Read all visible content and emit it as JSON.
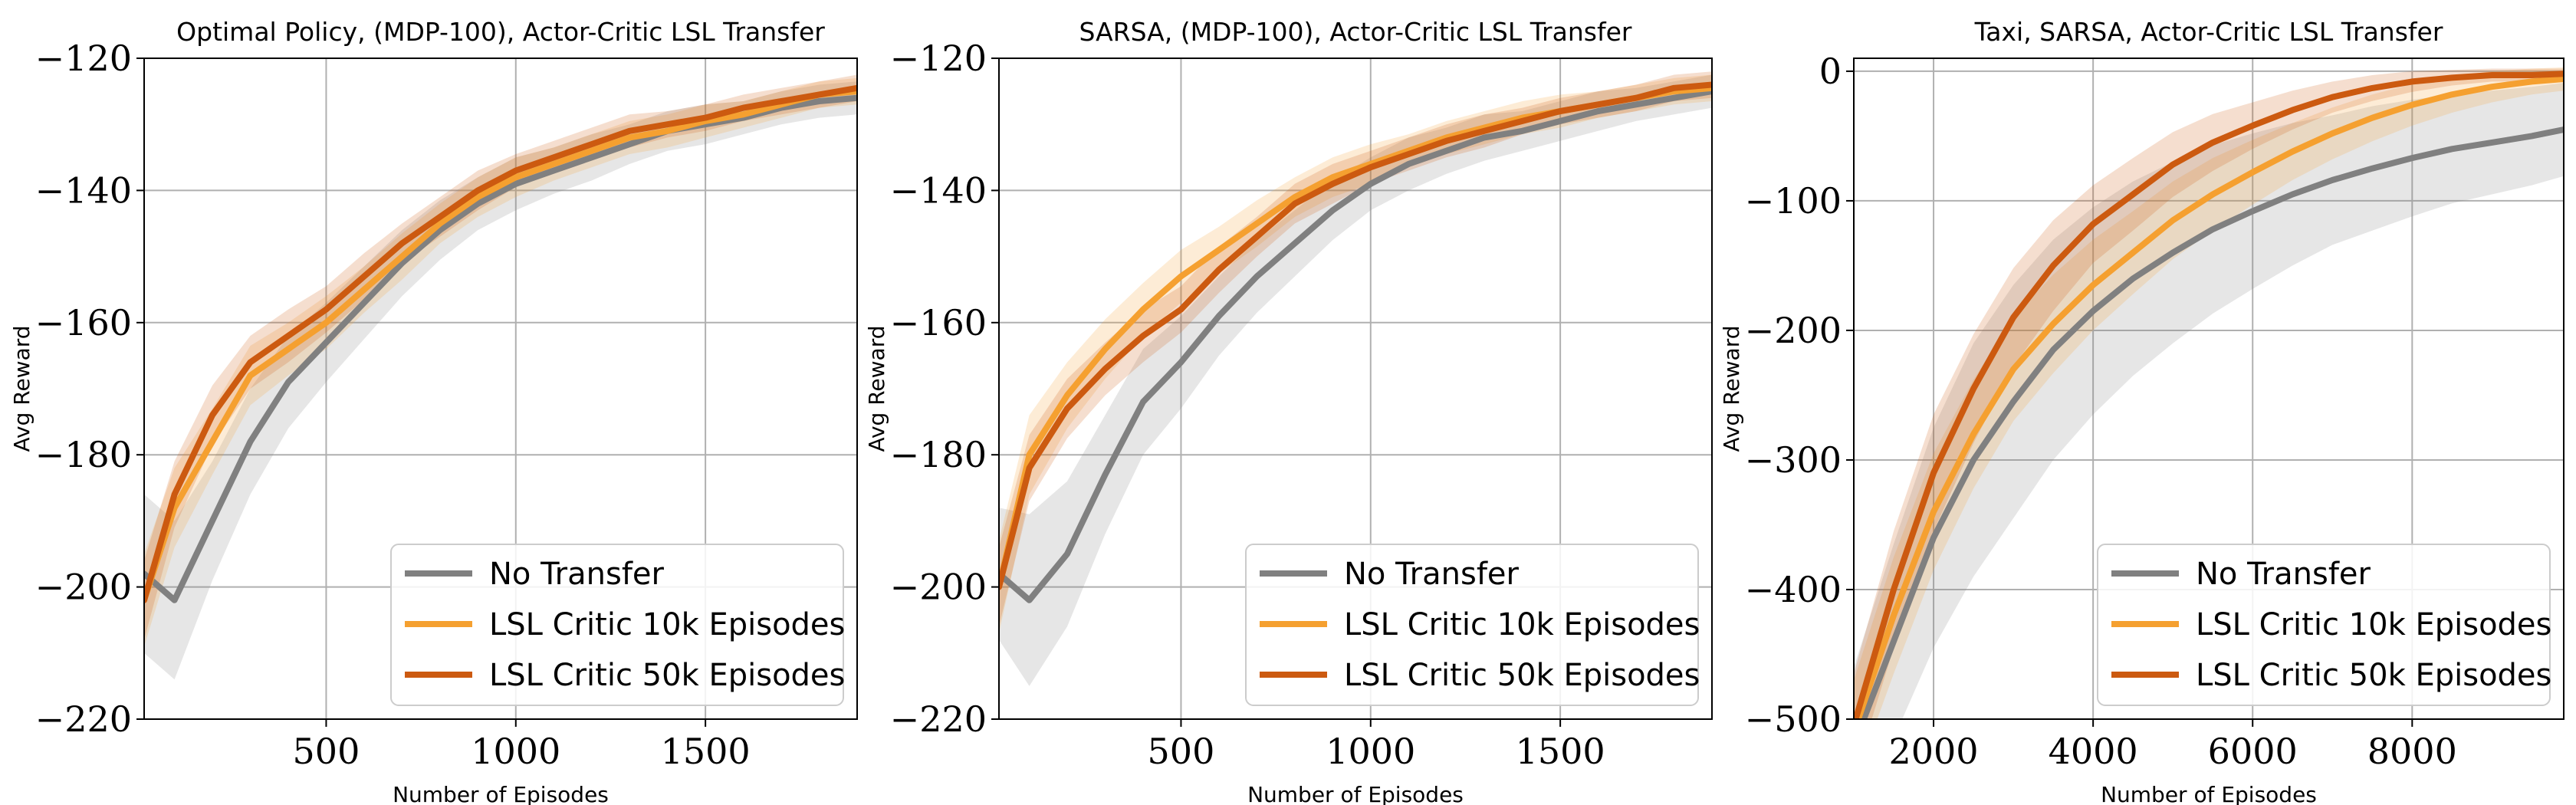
{
  "chart_data": [
    {
      "type": "line",
      "title": "Optimal Policy, (MDP-100), Actor-Critic LSL Transfer",
      "xlabel": "Number of Episodes",
      "ylabel": "Avg Reward",
      "xlim": [
        20,
        1900
      ],
      "ylim": [
        -220,
        -120
      ],
      "xticks": [
        500,
        1000,
        1500
      ],
      "yticks": [
        -220,
        -200,
        -180,
        -160,
        -140,
        -120
      ],
      "grid": true,
      "legend_position": "lower-right",
      "series": [
        {
          "name": "No Transfer",
          "color": "#808080",
          "x": [
            20,
            100,
            200,
            300,
            400,
            500,
            600,
            700,
            800,
            900,
            1000,
            1100,
            1200,
            1300,
            1400,
            1500,
            1600,
            1700,
            1800,
            1900
          ],
          "values": [
            -198,
            -202,
            -190,
            -178,
            -169,
            -163,
            -157,
            -151,
            -146,
            -142,
            -139,
            -137,
            -135,
            -133,
            -131,
            -130,
            -129,
            -127.5,
            -126.5,
            -126
          ],
          "band": [
            12,
            12,
            9,
            8,
            7,
            6,
            5.5,
            5,
            4.5,
            4,
            4,
            3.5,
            3.5,
            3,
            3,
            3,
            2.5,
            2.5,
            2.5,
            2.5
          ]
        },
        {
          "name": "LSL Critic 10k Episodes",
          "color": "#f5a030",
          "x": [
            20,
            100,
            200,
            300,
            400,
            500,
            600,
            700,
            800,
            900,
            1000,
            1100,
            1200,
            1300,
            1400,
            1500,
            1600,
            1700,
            1800,
            1900
          ],
          "values": [
            -202,
            -188,
            -178,
            -168,
            -164,
            -160,
            -155,
            -150,
            -145,
            -141,
            -138,
            -136,
            -134,
            -132,
            -131,
            -129.5,
            -128.5,
            -127,
            -125.5,
            -125
          ],
          "band": [
            7,
            6,
            5,
            4.5,
            4,
            4,
            3.5,
            3.5,
            3,
            3,
            3,
            2.5,
            2.5,
            2.5,
            2.5,
            2.5,
            2,
            2,
            2,
            2
          ]
        },
        {
          "name": "LSL Critic 50k Episodes",
          "color": "#cc5a10",
          "x": [
            20,
            100,
            200,
            300,
            400,
            500,
            600,
            700,
            800,
            900,
            1000,
            1100,
            1200,
            1300,
            1400,
            1500,
            1600,
            1700,
            1800,
            1900
          ],
          "values": [
            -202,
            -186,
            -174,
            -166,
            -162,
            -158,
            -153,
            -148,
            -144,
            -140,
            -137,
            -135,
            -133,
            -131,
            -130,
            -129,
            -127.5,
            -126.5,
            -125.5,
            -124.5
          ],
          "band": [
            6,
            5,
            4.5,
            4,
            4,
            3.5,
            3.5,
            3,
            3,
            3,
            2.5,
            2.5,
            2.5,
            2.5,
            2,
            2,
            2,
            2,
            2,
            2
          ]
        }
      ]
    },
    {
      "type": "line",
      "title": "SARSA, (MDP-100), Actor-Critic LSL Transfer",
      "xlabel": "Number of Episodes",
      "ylabel": "Avg Reward",
      "xlim": [
        20,
        1900
      ],
      "ylim": [
        -220,
        -120
      ],
      "xticks": [
        500,
        1000,
        1500
      ],
      "yticks": [
        -220,
        -200,
        -180,
        -160,
        -140,
        -120
      ],
      "grid": true,
      "legend_position": "lower-right",
      "series": [
        {
          "name": "No Transfer",
          "color": "#808080",
          "x": [
            20,
            100,
            200,
            300,
            400,
            500,
            600,
            700,
            800,
            900,
            1000,
            1100,
            1200,
            1300,
            1400,
            1500,
            1600,
            1700,
            1800,
            1900
          ],
          "values": [
            -198,
            -202,
            -195,
            -183,
            -172,
            -166,
            -159,
            -153,
            -148,
            -143,
            -139,
            -136,
            -134,
            -132,
            -131,
            -129.5,
            -128,
            -127,
            -126,
            -125
          ],
          "band": [
            10,
            13,
            11,
            9,
            8,
            7,
            6,
            5.5,
            5,
            4.5,
            4,
            4,
            3.5,
            3.5,
            3,
            3,
            3,
            2.5,
            2.5,
            2.5
          ]
        },
        {
          "name": "LSL Critic 10k Episodes",
          "color": "#f5a030",
          "x": [
            20,
            100,
            200,
            300,
            400,
            500,
            600,
            700,
            800,
            900,
            1000,
            1100,
            1200,
            1300,
            1400,
            1500,
            1600,
            1700,
            1800,
            1900
          ],
          "values": [
            -200,
            -180,
            -171,
            -164,
            -158,
            -153,
            -149,
            -145,
            -141,
            -138,
            -136,
            -134,
            -132,
            -130.5,
            -129,
            -128,
            -127,
            -126,
            -125,
            -124.5
          ],
          "band": [
            7,
            6,
            5,
            4.5,
            4,
            4,
            3.5,
            3.5,
            3,
            3,
            3,
            2.5,
            2.5,
            2.5,
            2.5,
            2.5,
            2,
            2,
            2,
            2
          ]
        },
        {
          "name": "LSL Critic 50k Episodes",
          "color": "#cc5a10",
          "x": [
            20,
            100,
            200,
            300,
            400,
            500,
            600,
            700,
            800,
            900,
            1000,
            1100,
            1200,
            1300,
            1400,
            1500,
            1600,
            1700,
            1800,
            1900
          ],
          "values": [
            -200,
            -182,
            -173,
            -167,
            -162,
            -158,
            -152,
            -147,
            -142,
            -139,
            -136.5,
            -134.5,
            -132.5,
            -131,
            -129.5,
            -128,
            -127,
            -126,
            -124.5,
            -124
          ],
          "band": [
            6,
            5,
            4.5,
            4,
            4,
            3.5,
            3.5,
            3,
            3,
            3,
            2.5,
            2.5,
            2.5,
            2.5,
            2,
            2,
            2,
            2,
            2,
            2
          ]
        }
      ]
    },
    {
      "type": "line",
      "title": "Taxi, SARSA, Actor-Critic LSL Transfer",
      "xlabel": "Number of Episodes",
      "ylabel": "Avg Reward",
      "xlim": [
        1000,
        9900
      ],
      "ylim": [
        -500,
        10
      ],
      "xticks": [
        2000,
        4000,
        6000,
        8000
      ],
      "yticks": [
        -500,
        -400,
        -300,
        -200,
        -100,
        0
      ],
      "grid": true,
      "legend_position": "lower-right",
      "series": [
        {
          "name": "No Transfer",
          "color": "#808080",
          "x": [
            1000,
            1500,
            2000,
            2500,
            3000,
            3500,
            4000,
            4500,
            5000,
            5500,
            6000,
            6500,
            7000,
            7500,
            8000,
            8500,
            9000,
            9500,
            9900
          ],
          "values": [
            -520,
            -440,
            -360,
            -300,
            -255,
            -215,
            -185,
            -160,
            -140,
            -122,
            -108,
            -95,
            -84,
            -75,
            -67,
            -60,
            -55,
            -50,
            -45
          ],
          "band": [
            60,
            75,
            85,
            90,
            90,
            85,
            80,
            75,
            70,
            65,
            60,
            55,
            50,
            48,
            45,
            42,
            40,
            38,
            36
          ]
        },
        {
          "name": "LSL Critic 10k Episodes",
          "color": "#f5a030",
          "x": [
            1000,
            1500,
            2000,
            2500,
            3000,
            3500,
            4000,
            4500,
            5000,
            5500,
            6000,
            6500,
            7000,
            7500,
            8000,
            8500,
            9000,
            9500,
            9900
          ],
          "values": [
            -510,
            -420,
            -340,
            -280,
            -230,
            -195,
            -165,
            -140,
            -115,
            -95,
            -78,
            -62,
            -48,
            -36,
            -26,
            -18,
            -12,
            -8,
            -6
          ],
          "band": [
            40,
            45,
            45,
            42,
            40,
            38,
            35,
            32,
            30,
            28,
            25,
            22,
            20,
            18,
            16,
            14,
            12,
            10,
            9
          ]
        },
        {
          "name": "LSL Critic 50k Episodes",
          "color": "#cc5a10",
          "x": [
            1000,
            1500,
            2000,
            2500,
            3000,
            3500,
            4000,
            4500,
            5000,
            5500,
            6000,
            6500,
            7000,
            7500,
            8000,
            8500,
            9000,
            9500,
            9900
          ],
          "values": [
            -505,
            -400,
            -310,
            -245,
            -190,
            -150,
            -118,
            -95,
            -72,
            -55,
            -42,
            -30,
            -20,
            -13,
            -8,
            -5,
            -3,
            -3,
            -2
          ],
          "band": [
            40,
            45,
            45,
            42,
            38,
            35,
            30,
            28,
            25,
            22,
            18,
            15,
            12,
            10,
            8,
            6,
            5,
            5,
            4
          ]
        }
      ]
    }
  ]
}
